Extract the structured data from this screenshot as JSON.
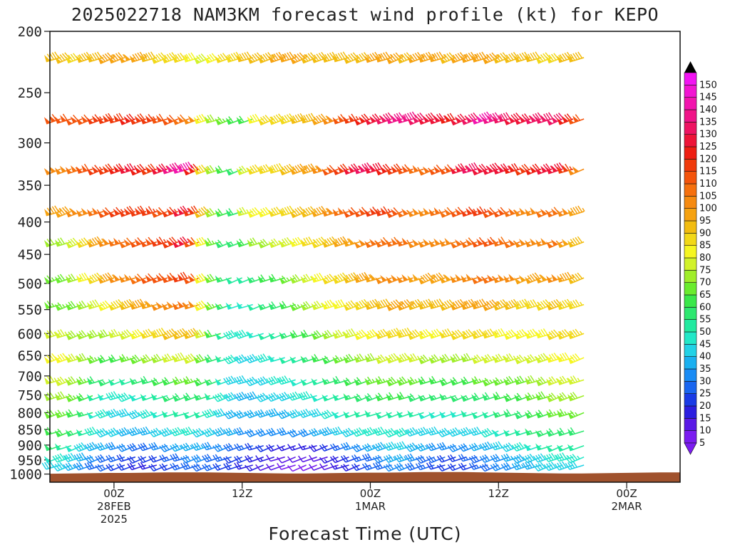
{
  "chart_data": {
    "type": "wind-profile",
    "title": "2025022718 NAM3KM forecast wind profile (kt) for KEPO",
    "xlabel": "Forecast Time (UTC)",
    "ylabel": "",
    "y_ticks": [
      200,
      250,
      300,
      350,
      400,
      450,
      500,
      550,
      600,
      650,
      700,
      750,
      800,
      850,
      900,
      950,
      1000
    ],
    "y_scale": "log",
    "ylim": [
      1030,
      200
    ],
    "x_ticks": [
      {
        "hour": 6,
        "line1": "00Z",
        "line2": "28FEB",
        "line3": "2025"
      },
      {
        "hour": 18,
        "line1": "12Z",
        "line2": "",
        "line3": ""
      },
      {
        "hour": 30,
        "line1": "00Z",
        "line2": "1MAR",
        "line3": ""
      },
      {
        "hour": 42,
        "line1": "12Z",
        "line2": "",
        "line3": ""
      },
      {
        "hour": 54,
        "line1": "00Z",
        "line2": "2MAR",
        "line3": ""
      }
    ],
    "xlim": [
      0,
      59
    ],
    "colorbar": {
      "levels": [
        5,
        10,
        15,
        20,
        25,
        30,
        35,
        40,
        45,
        50,
        55,
        60,
        65,
        70,
        75,
        80,
        85,
        90,
        95,
        100,
        105,
        110,
        115,
        120,
        125,
        130,
        135,
        140,
        145,
        150
      ],
      "colors": [
        "#7b1cf0",
        "#5a1ae6",
        "#2c1ee0",
        "#1a3be6",
        "#1a66f0",
        "#1a8cf5",
        "#1ab0f0",
        "#22d2e6",
        "#22e8c8",
        "#22eaa0",
        "#2ee870",
        "#3ae84a",
        "#6aec2e",
        "#a0ee2a",
        "#d2f22a",
        "#f6f622",
        "#f2d818",
        "#f2bc10",
        "#f6a210",
        "#f68a10",
        "#f6700e",
        "#f4540c",
        "#f03a0c",
        "#ee1e12",
        "#ee1438",
        "#ee1462",
        "#f01488",
        "#f214ae",
        "#f214d2",
        "#f214f2"
      ]
    },
    "series": [
      {
        "p": 220,
        "dir": 0,
        "spd": [
          90,
          90,
          85,
          90,
          92,
          95,
          95,
          98,
          95,
          90,
          88,
          88,
          85,
          80,
          78,
          82,
          85,
          88,
          90,
          92,
          93,
          95,
          95,
          95,
          92,
          92,
          92,
          90,
          90,
          92,
          95,
          95,
          95,
          92,
          95,
          95,
          95,
          92,
          95,
          95,
          95,
          95,
          92,
          90,
          92,
          92,
          88,
          85,
          90,
          92
        ]
      },
      {
        "p": 275,
        "dir": 0,
        "spd": [
          110,
          110,
          112,
          110,
          115,
          118,
          118,
          120,
          118,
          115,
          110,
          110,
          108,
          100,
          80,
          70,
          65,
          60,
          60,
          80,
          85,
          88,
          88,
          90,
          92,
          95,
          100,
          110,
          115,
          120,
          125,
          130,
          135,
          138,
          132,
          128,
          125,
          120,
          125,
          130,
          140,
          135,
          130,
          128,
          125,
          130,
          132,
          130,
          120,
          110
        ]
      },
      {
        "p": 330,
        "dir": 0,
        "spd": [
          100,
          100,
          105,
          110,
          115,
          118,
          120,
          125,
          120,
          118,
          125,
          135,
          140,
          120,
          85,
          70,
          60,
          55,
          75,
          85,
          85,
          88,
          90,
          95,
          95,
          100,
          110,
          118,
          125,
          130,
          128,
          122,
          118,
          110,
          105,
          105,
          110,
          112,
          125,
          130,
          125,
          128,
          125,
          120,
          118,
          120,
          125,
          128,
          115,
          100
        ]
      },
      {
        "p": 385,
        "dir": 0,
        "spd": [
          95,
          95,
          100,
          100,
          105,
          110,
          115,
          118,
          118,
          115,
          112,
          115,
          125,
          118,
          90,
          70,
          60,
          58,
          75,
          82,
          82,
          85,
          88,
          90,
          92,
          95,
          100,
          105,
          110,
          112,
          115,
          115,
          110,
          105,
          100,
          100,
          105,
          108,
          112,
          115,
          115,
          112,
          110,
          105,
          100,
          102,
          105,
          108,
          100,
          95
        ]
      },
      {
        "p": 430,
        "dir": 0,
        "spd": [
          70,
          72,
          78,
          85,
          95,
          100,
          105,
          108,
          112,
          112,
          115,
          118,
          125,
          112,
          80,
          65,
          58,
          55,
          62,
          70,
          72,
          75,
          78,
          82,
          85,
          88,
          90,
          95,
          98,
          102,
          105,
          108,
          108,
          105,
          102,
          100,
          100,
          102,
          105,
          108,
          110,
          110,
          108,
          105,
          100,
          100,
          102,
          105,
          98,
          92
        ]
      },
      {
        "p": 490,
        "dir": 0,
        "spd": [
          65,
          68,
          72,
          80,
          88,
          95,
          100,
          104,
          108,
          110,
          110,
          112,
          118,
          110,
          82,
          68,
          55,
          50,
          50,
          55,
          60,
          62,
          65,
          70,
          75,
          80,
          85,
          88,
          92,
          95,
          98,
          100,
          102,
          100,
          98,
          95,
          95,
          98,
          100,
          102,
          105,
          105,
          102,
          100,
          98,
          96,
          98,
          100,
          95,
          90
        ]
      },
      {
        "p": 540,
        "dir": 0,
        "spd": [
          65,
          65,
          68,
          72,
          78,
          82,
          88,
          90,
          95,
          98,
          100,
          102,
          105,
          100,
          80,
          65,
          55,
          48,
          48,
          52,
          55,
          58,
          60,
          65,
          70,
          75,
          80,
          82,
          85,
          88,
          90,
          92,
          95,
          95,
          92,
          90,
          90,
          92,
          95,
          95,
          95,
          95,
          92,
          90,
          88,
          86,
          88,
          90,
          88,
          85
        ]
      },
      {
        "p": 600,
        "dir": 0,
        "spd": [
          75,
          75,
          72,
          70,
          70,
          72,
          75,
          78,
          82,
          85,
          88,
          90,
          92,
          90,
          75,
          62,
          52,
          45,
          45,
          48,
          50,
          52,
          55,
          60,
          62,
          68,
          72,
          75,
          78,
          80,
          82,
          85,
          88,
          88,
          85,
          82,
          82,
          85,
          85,
          85,
          85,
          85,
          82,
          82,
          80,
          80,
          82,
          85,
          85,
          85
        ]
      },
      {
        "p": 655,
        "dir": 0,
        "spd": [
          82,
          80,
          75,
          70,
          65,
          62,
          62,
          65,
          68,
          70,
          72,
          75,
          78,
          78,
          68,
          58,
          50,
          45,
          42,
          42,
          45,
          48,
          50,
          52,
          55,
          60,
          62,
          65,
          68,
          70,
          72,
          75,
          78,
          78,
          75,
          72,
          72,
          72,
          72,
          72,
          75,
          75,
          75,
          75,
          75,
          75,
          78,
          80,
          82,
          82
        ]
      },
      {
        "p": 710,
        "dir": 0,
        "spd": [
          75,
          75,
          70,
          65,
          58,
          55,
          52,
          52,
          55,
          58,
          60,
          62,
          65,
          65,
          60,
          55,
          48,
          42,
          40,
          40,
          42,
          45,
          45,
          48,
          50,
          52,
          55,
          58,
          60,
          62,
          65,
          65,
          68,
          68,
          65,
          62,
          62,
          62,
          62,
          62,
          65,
          65,
          65,
          68,
          68,
          70,
          72,
          75,
          75,
          75
        ]
      },
      {
        "p": 752,
        "dir": 0,
        "spd": [
          70,
          70,
          65,
          60,
          52,
          48,
          45,
          45,
          48,
          50,
          52,
          55,
          58,
          58,
          55,
          50,
          45,
          40,
          38,
          38,
          40,
          42,
          42,
          45,
          45,
          48,
          50,
          52,
          55,
          58,
          58,
          60,
          60,
          60,
          58,
          55,
          55,
          55,
          55,
          55,
          58,
          58,
          60,
          62,
          62,
          65,
          68,
          70,
          70,
          70
        ]
      },
      {
        "p": 800,
        "dir": 0,
        "spd": [
          68,
          65,
          60,
          55,
          48,
          45,
          42,
          42,
          42,
          45,
          48,
          50,
          52,
          52,
          50,
          45,
          42,
          38,
          35,
          35,
          35,
          38,
          38,
          40,
          40,
          42,
          45,
          48,
          50,
          52,
          52,
          52,
          52,
          52,
          50,
          48,
          48,
          48,
          48,
          50,
          50,
          52,
          55,
          58,
          58,
          60,
          62,
          65,
          65,
          65
        ]
      },
      {
        "p": 855,
        "dir": 0,
        "spd": [
          62,
          60,
          55,
          50,
          45,
          42,
          40,
          38,
          38,
          38,
          40,
          42,
          45,
          45,
          42,
          40,
          38,
          35,
          32,
          30,
          30,
          30,
          30,
          32,
          32,
          35,
          38,
          40,
          42,
          45,
          45,
          45,
          45,
          45,
          42,
          40,
          40,
          40,
          40,
          42,
          42,
          45,
          48,
          50,
          52,
          55,
          55,
          58,
          58,
          58
        ]
      },
      {
        "p": 902,
        "dir": 0,
        "spd": [
          55,
          52,
          48,
          42,
          38,
          35,
          32,
          30,
          28,
          28,
          30,
          32,
          35,
          35,
          35,
          32,
          30,
          28,
          25,
          22,
          20,
          18,
          15,
          15,
          15,
          18,
          20,
          25,
          30,
          32,
          35,
          38,
          40,
          40,
          38,
          35,
          32,
          30,
          30,
          32,
          35,
          38,
          40,
          42,
          45,
          48,
          50,
          52,
          50,
          50
        ]
      },
      {
        "p": 940,
        "dir": 0,
        "spd": [
          48,
          45,
          42,
          38,
          32,
          28,
          25,
          22,
          20,
          20,
          22,
          25,
          28,
          30,
          30,
          28,
          25,
          22,
          20,
          18,
          15,
          12,
          10,
          10,
          10,
          12,
          15,
          18,
          22,
          25,
          28,
          32,
          35,
          35,
          32,
          28,
          25,
          22,
          22,
          25,
          28,
          30,
          32,
          35,
          38,
          40,
          42,
          45,
          45,
          45
        ]
      },
      {
        "p": 968,
        "dir": 0,
        "spd": [
          42,
          40,
          35,
          30,
          28,
          25,
          22,
          20,
          18,
          18,
          20,
          22,
          25,
          28,
          28,
          25,
          22,
          20,
          18,
          15,
          12,
          10,
          8,
          8,
          8,
          10,
          12,
          15,
          18,
          22,
          25,
          28,
          30,
          30,
          28,
          25,
          22,
          20,
          20,
          22,
          25,
          28,
          30,
          32,
          35,
          38,
          40,
          42,
          42,
          42
        ]
      }
    ],
    "terrain": {
      "color": "#a0522d"
    }
  }
}
